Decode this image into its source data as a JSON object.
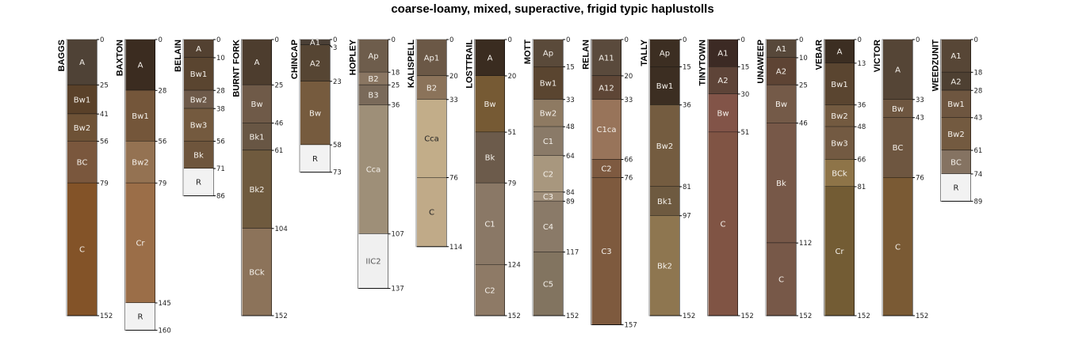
{
  "title": "coarse-loamy, mixed, superactive, frigid typic haplustolls",
  "profiles": [
    {
      "name": "BAGGS",
      "horizons": [
        [
          "A",
          0,
          25,
          "#4f4236"
        ],
        [
          "Bw1",
          25,
          41,
          "#5a4129"
        ],
        [
          "Bw2",
          41,
          56,
          "#6e5236"
        ],
        [
          "BC",
          56,
          79,
          "#7a573d"
        ],
        [
          "C",
          79,
          152,
          "#835328"
        ]
      ]
    },
    {
      "name": "BAXTON",
      "horizons": [
        [
          "A",
          0,
          28,
          "#3b2c20"
        ],
        [
          "Bw1",
          28,
          56,
          "#74563a"
        ],
        [
          "Bw2",
          56,
          79,
          "#947252"
        ],
        [
          "Cr",
          79,
          145,
          "#9b6e48"
        ],
        [
          "R",
          145,
          160,
          "#f2f2f2"
        ]
      ]
    },
    {
      "name": "BELAIN",
      "horizons": [
        [
          "A",
          0,
          10,
          "#534131"
        ],
        [
          "Bw1",
          10,
          28,
          "#5a4530"
        ],
        [
          "Bw2",
          28,
          38,
          "#6e5a4a"
        ],
        [
          "Bw3",
          38,
          56,
          "#745a3f"
        ],
        [
          "Bk",
          56,
          71,
          "#6e553c"
        ],
        [
          "R",
          71,
          86,
          "#f2f2f2"
        ]
      ]
    },
    {
      "name": "BURNT FORK",
      "horizons": [
        [
          "A",
          0,
          25,
          "#4d3d2e"
        ],
        [
          "Bw",
          25,
          46,
          "#6f5a48"
        ],
        [
          "Bk1",
          46,
          61,
          "#685644"
        ],
        [
          "Bk2",
          61,
          104,
          "#6f5a3e"
        ],
        [
          "BCk",
          104,
          152,
          "#8c735a"
        ]
      ]
    },
    {
      "name": "CHINCAP",
      "horizons": [
        [
          "A1",
          0,
          3,
          "#4a3f35"
        ],
        [
          "A2",
          3,
          23,
          "#564533"
        ],
        [
          "Bw",
          23,
          58,
          "#765b3e"
        ],
        [
          "R",
          58,
          73,
          "#f2f2f2"
        ]
      ]
    },
    {
      "name": "HOPLEY",
      "horizons": [
        [
          "Ap",
          0,
          18,
          "#6e5d4c"
        ],
        [
          "B2",
          18,
          25,
          "#8a7662"
        ],
        [
          "B3",
          25,
          36,
          "#7a6a5a"
        ],
        [
          "Cca",
          36,
          107,
          "#9e8f78"
        ],
        [
          "IIC2",
          107,
          137,
          "#f0f0f0"
        ]
      ]
    },
    {
      "name": "KALISPELL",
      "horizons": [
        [
          "Ap1",
          0,
          20,
          "#6b5846"
        ],
        [
          "B2",
          20,
          33,
          "#8b735a"
        ],
        [
          "Cca",
          33,
          76,
          "#c2ad89"
        ],
        [
          "C",
          76,
          114,
          "#c0aa88"
        ]
      ]
    },
    {
      "name": "LOSTTRAIL",
      "horizons": [
        [
          "A",
          0,
          20,
          "#3a2c20"
        ],
        [
          "Bw",
          20,
          51,
          "#765a34"
        ],
        [
          "Bk",
          51,
          79,
          "#6c5b4b"
        ],
        [
          "C1",
          79,
          124,
          "#8a7866"
        ],
        [
          "C2",
          124,
          152,
          "#8e7a66"
        ]
      ]
    },
    {
      "name": "MOTT",
      "horizons": [
        [
          "Ap",
          0,
          15,
          "#5a4a3a"
        ],
        [
          "Bw1",
          15,
          33,
          "#5a4530"
        ],
        [
          "Bw2",
          33,
          48,
          "#8e7a62"
        ],
        [
          "C1",
          48,
          64,
          "#8a7a68"
        ],
        [
          "C2",
          64,
          84,
          "#a8977e"
        ],
        [
          "C3",
          84,
          89,
          "#a08f7a"
        ],
        [
          "C4",
          89,
          117,
          "#8a7a68"
        ],
        [
          "C5",
          117,
          152,
          "#827460"
        ]
      ]
    },
    {
      "name": "RELAN",
      "horizons": [
        [
          "A11",
          0,
          20,
          "#5a4a3c"
        ],
        [
          "A12",
          20,
          33,
          "#5e4636"
        ],
        [
          "C1ca",
          33,
          66,
          "#98745a"
        ],
        [
          "C2",
          66,
          76,
          "#7e5a40"
        ],
        [
          "C3",
          76,
          157,
          "#7e5a3e"
        ]
      ]
    },
    {
      "name": "TALLY",
      "horizons": [
        [
          "Ap",
          0,
          15,
          "#3c2e22"
        ],
        [
          "Bw1",
          15,
          36,
          "#3c2e22"
        ],
        [
          "Bw2",
          36,
          81,
          "#745c40"
        ],
        [
          "Bk1",
          81,
          97,
          "#6e5a40"
        ],
        [
          "Bk2",
          97,
          152,
          "#8e7650"
        ]
      ]
    },
    {
      "name": "TINYTOWN",
      "horizons": [
        [
          "A1",
          0,
          15,
          "#3c2a24"
        ],
        [
          "A2",
          15,
          30,
          "#5e4438"
        ],
        [
          "Bw",
          30,
          51,
          "#825448"
        ],
        [
          "C",
          51,
          152,
          "#805444"
        ]
      ]
    },
    {
      "name": "UNAWEEP",
      "horizons": [
        [
          "A1",
          0,
          10,
          "#57483a"
        ],
        [
          "A2",
          10,
          25,
          "#5e4434"
        ],
        [
          "Bw",
          25,
          46,
          "#745a48"
        ],
        [
          "Bk",
          46,
          112,
          "#775848"
        ],
        [
          "C",
          112,
          152,
          "#775848"
        ]
      ]
    },
    {
      "name": "VEBAR",
      "horizons": [
        [
          "A",
          0,
          13,
          "#3c2e22"
        ],
        [
          "Bw1",
          13,
          36,
          "#5a4530"
        ],
        [
          "Bw2",
          36,
          48,
          "#735a40"
        ],
        [
          "Bw3",
          48,
          66,
          "#735a42"
        ],
        [
          "BCk",
          66,
          81,
          "#8e7448"
        ],
        [
          "Cr",
          81,
          152,
          "#735c34"
        ]
      ]
    },
    {
      "name": "VICTOR",
      "horizons": [
        [
          "A",
          0,
          33,
          "#554536"
        ],
        [
          "Bw",
          33,
          43,
          "#6e5640"
        ],
        [
          "BC",
          43,
          76,
          "#6e5640"
        ],
        [
          "C",
          76,
          152,
          "#7a5a34"
        ]
      ]
    },
    {
      "name": "WEEDZUNIT",
      "horizons": [
        [
          "A1",
          0,
          18,
          "#574636"
        ],
        [
          "A2",
          18,
          28,
          "#4e4032"
        ],
        [
          "Bw1",
          28,
          43,
          "#6e5640"
        ],
        [
          "Bw2",
          43,
          61,
          "#735a40"
        ],
        [
          "BC",
          61,
          74,
          "#857362"
        ],
        [
          "R",
          74,
          89,
          "#f2f2f2"
        ]
      ]
    }
  ]
}
